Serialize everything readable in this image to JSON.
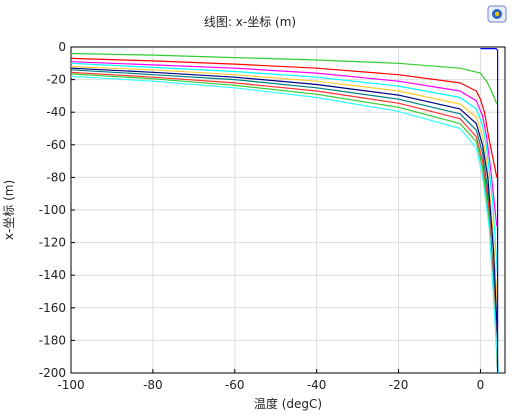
{
  "toolbar": {
    "logo_icon": "comsol-logo-icon"
  },
  "chart_data": {
    "type": "line",
    "title": "线图: x-坐标 (m)",
    "xlabel": "温度 (degC)",
    "ylabel": "x-坐标 (m)",
    "xlim": [
      -100,
      6
    ],
    "ylim": [
      -200,
      0
    ],
    "xticks": [
      -100,
      -80,
      -60,
      -40,
      -20,
      0
    ],
    "xtick_labels": [
      "-100",
      "-80",
      "-60",
      "-40",
      "-20",
      "0"
    ],
    "yticks": [
      0,
      -20,
      -40,
      -60,
      -80,
      -100,
      -120,
      -140,
      -160,
      -180,
      -200
    ],
    "ytick_labels": [
      "0",
      "-20",
      "-40",
      "-60",
      "-80",
      "-100",
      "-120",
      "-140",
      "-160",
      "-180",
      "-200"
    ],
    "grid": true,
    "series": [
      {
        "color": "#33cc33",
        "points": [
          [
            -100,
            -4
          ],
          [
            -80,
            -5
          ],
          [
            -60,
            -6.5
          ],
          [
            -40,
            -8
          ],
          [
            -20,
            -10
          ],
          [
            -5,
            -13
          ],
          [
            0,
            -16
          ],
          [
            1.5,
            -21
          ],
          [
            2.5,
            -26
          ],
          [
            4,
            -35
          ]
        ]
      },
      {
        "color": "#ff0000",
        "points": [
          [
            -100,
            -7
          ],
          [
            -80,
            -8.5
          ],
          [
            -60,
            -10.5
          ],
          [
            -40,
            -13
          ],
          [
            -20,
            -17
          ],
          [
            -5,
            -22
          ],
          [
            -1,
            -27
          ],
          [
            0,
            -32
          ],
          [
            1,
            -40
          ],
          [
            2,
            -55
          ],
          [
            4,
            -80
          ]
        ]
      },
      {
        "color": "#ff00ff",
        "points": [
          [
            -100,
            -9
          ],
          [
            -80,
            -11
          ],
          [
            -60,
            -13
          ],
          [
            -40,
            -16
          ],
          [
            -20,
            -21
          ],
          [
            -5,
            -27
          ],
          [
            -1,
            -33
          ],
          [
            0.5,
            -42
          ],
          [
            1.5,
            -55
          ],
          [
            2.5,
            -75
          ],
          [
            4,
            -110
          ]
        ]
      },
      {
        "color": "#00ffff",
        "points": [
          [
            -100,
            -10
          ],
          [
            -80,
            -12.5
          ],
          [
            -60,
            -15
          ],
          [
            -40,
            -18.5
          ],
          [
            -20,
            -24
          ],
          [
            -5,
            -31
          ],
          [
            -1,
            -38
          ],
          [
            0.5,
            -48
          ],
          [
            1.5,
            -62
          ],
          [
            3,
            -95
          ],
          [
            4.2,
            -140
          ]
        ]
      },
      {
        "color": "#ffcc33",
        "points": [
          [
            -100,
            -12
          ],
          [
            -80,
            -14
          ],
          [
            -60,
            -17
          ],
          [
            -40,
            -21
          ],
          [
            -20,
            -27
          ],
          [
            -5,
            -35
          ],
          [
            -1,
            -43
          ],
          [
            0.5,
            -55
          ],
          [
            1.5,
            -70
          ],
          [
            3,
            -110
          ],
          [
            4.2,
            -160
          ]
        ]
      },
      {
        "color": "#000080",
        "points": [
          [
            -100,
            -13
          ],
          [
            -80,
            -15.5
          ],
          [
            -60,
            -18.5
          ],
          [
            -40,
            -23
          ],
          [
            -20,
            -29.5
          ],
          [
            -5,
            -38
          ],
          [
            -1,
            -47
          ],
          [
            0.5,
            -60
          ],
          [
            1.8,
            -80
          ],
          [
            3.2,
            -125
          ],
          [
            4.2,
            -180
          ]
        ]
      },
      {
        "color": "#008080",
        "points": [
          [
            -100,
            -14
          ],
          [
            -80,
            -17
          ],
          [
            -60,
            -20
          ],
          [
            -40,
            -25
          ],
          [
            -20,
            -32
          ],
          [
            -5,
            -41
          ],
          [
            -1,
            -51
          ],
          [
            0.5,
            -65
          ],
          [
            1.8,
            -88
          ],
          [
            3.2,
            -140
          ],
          [
            4.2,
            -200
          ]
        ]
      },
      {
        "color": "#ff3333",
        "points": [
          [
            -100,
            -15.5
          ],
          [
            -80,
            -18.5
          ],
          [
            -60,
            -22
          ],
          [
            -40,
            -27
          ],
          [
            -20,
            -34.5
          ],
          [
            -5,
            -44
          ],
          [
            -1,
            -55
          ],
          [
            0.5,
            -70
          ],
          [
            2,
            -97
          ],
          [
            3.3,
            -150
          ],
          [
            4.3,
            -200
          ]
        ]
      },
      {
        "color": "#33cc33",
        "points": [
          [
            -100,
            -16.5
          ],
          [
            -80,
            -19.5
          ],
          [
            -60,
            -23.5
          ],
          [
            -40,
            -29
          ],
          [
            -20,
            -37
          ],
          [
            -5,
            -47
          ],
          [
            -1,
            -58
          ],
          [
            0.5,
            -74
          ],
          [
            2,
            -103
          ],
          [
            3.4,
            -160
          ],
          [
            4.3,
            -200
          ]
        ]
      },
      {
        "color": "#33ffff",
        "points": [
          [
            -100,
            -18
          ],
          [
            -80,
            -21
          ],
          [
            -60,
            -25
          ],
          [
            -40,
            -31
          ],
          [
            -20,
            -39.5
          ],
          [
            -5,
            -50
          ],
          [
            -1,
            -62
          ],
          [
            0.5,
            -79
          ],
          [
            2.2,
            -112
          ],
          [
            3.6,
            -170
          ],
          [
            4.4,
            -200
          ]
        ]
      },
      {
        "color": "#0000ff",
        "points": [
          [
            0,
            -1
          ],
          [
            3.8,
            -1
          ],
          [
            4.2,
            -2
          ],
          [
            4.2,
            -200
          ]
        ]
      }
    ]
  }
}
